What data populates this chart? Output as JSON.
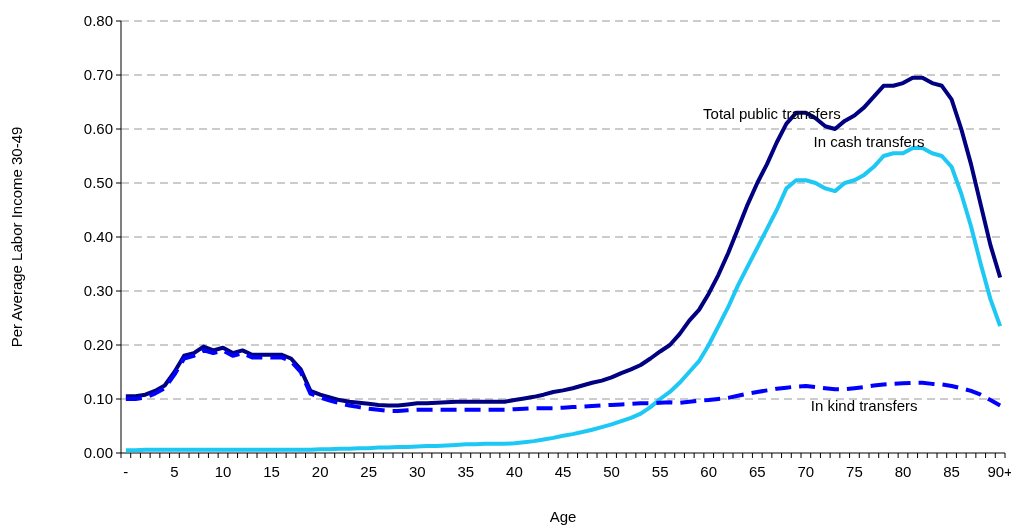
{
  "chart_data": {
    "type": "line",
    "xlabel": "Age",
    "ylabel": "Per Average Labor Income 30-49",
    "categories": [
      "-",
      null,
      null,
      null,
      null,
      "5",
      null,
      null,
      null,
      null,
      "10",
      null,
      null,
      null,
      null,
      "15",
      null,
      null,
      null,
      null,
      "20",
      null,
      null,
      null,
      null,
      "25",
      null,
      null,
      null,
      null,
      "30",
      null,
      null,
      null,
      null,
      "35",
      null,
      null,
      null,
      null,
      "40",
      null,
      null,
      null,
      null,
      "45",
      null,
      null,
      null,
      null,
      "50",
      null,
      null,
      null,
      null,
      "55",
      null,
      null,
      null,
      null,
      "60",
      null,
      null,
      null,
      null,
      "65",
      null,
      null,
      null,
      null,
      "70",
      null,
      null,
      null,
      null,
      "75",
      null,
      null,
      null,
      null,
      "80",
      null,
      null,
      null,
      null,
      "85",
      null,
      null,
      null,
      null,
      "90+"
    ],
    "ylim": [
      0,
      0.8
    ],
    "yticks": [
      {
        "value": 0,
        "label": "0.00"
      },
      {
        "value": 0.1,
        "label": "0.10"
      },
      {
        "value": 0.2,
        "label": "0.20"
      },
      {
        "value": 0.3,
        "label": "0.30"
      },
      {
        "value": 0.4,
        "label": "0.40"
      },
      {
        "value": 0.5,
        "label": "0.50"
      },
      {
        "value": 0.6,
        "label": "0.60"
      },
      {
        "value": 0.7,
        "label": "0.70"
      },
      {
        "value": 0.8,
        "label": "0.80"
      }
    ],
    "grid": "y",
    "marker": "none",
    "series": [
      {
        "name": "Total public transfers",
        "color": "#000080",
        "line_style": "solid",
        "values": [
          0.105,
          0.105,
          0.108,
          0.115,
          0.125,
          0.15,
          0.18,
          0.185,
          0.197,
          0.19,
          0.195,
          0.185,
          0.19,
          0.182,
          0.182,
          0.182,
          0.182,
          0.175,
          0.155,
          0.115,
          0.108,
          0.103,
          0.098,
          0.095,
          0.093,
          0.091,
          0.089,
          0.088,
          0.088,
          0.09,
          0.092,
          0.092,
          0.093,
          0.094,
          0.095,
          0.095,
          0.095,
          0.095,
          0.095,
          0.095,
          0.098,
          0.101,
          0.104,
          0.108,
          0.113,
          0.116,
          0.12,
          0.125,
          0.13,
          0.134,
          0.14,
          0.148,
          0.155,
          0.163,
          0.175,
          0.188,
          0.2,
          0.22,
          0.245,
          0.265,
          0.295,
          0.33,
          0.37,
          0.415,
          0.46,
          0.5,
          0.535,
          0.575,
          0.61,
          0.63,
          0.63,
          0.62,
          0.605,
          0.6,
          0.615,
          0.625,
          0.64,
          0.66,
          0.68,
          0.68,
          0.685,
          0.695,
          0.695,
          0.685,
          0.68,
          0.655,
          0.6,
          0.535,
          0.46,
          0.385,
          0.325
        ]
      },
      {
        "name": "In cash transfers",
        "color": "#1ec8f5",
        "line_style": "solid",
        "values": [
          0.005,
          0.005,
          0.006,
          0.006,
          0.006,
          0.006,
          0.006,
          0.006,
          0.006,
          0.006,
          0.006,
          0.006,
          0.006,
          0.006,
          0.006,
          0.006,
          0.006,
          0.006,
          0.006,
          0.006,
          0.007,
          0.007,
          0.008,
          0.008,
          0.009,
          0.009,
          0.01,
          0.01,
          0.011,
          0.011,
          0.012,
          0.013,
          0.013,
          0.014,
          0.015,
          0.016,
          0.016,
          0.017,
          0.017,
          0.017,
          0.018,
          0.02,
          0.022,
          0.025,
          0.028,
          0.032,
          0.035,
          0.039,
          0.043,
          0.048,
          0.053,
          0.059,
          0.065,
          0.073,
          0.085,
          0.1,
          0.113,
          0.13,
          0.15,
          0.17,
          0.2,
          0.235,
          0.27,
          0.31,
          0.345,
          0.38,
          0.415,
          0.45,
          0.49,
          0.505,
          0.505,
          0.5,
          0.49,
          0.485,
          0.5,
          0.505,
          0.515,
          0.53,
          0.55,
          0.555,
          0.555,
          0.565,
          0.565,
          0.555,
          0.55,
          0.53,
          0.48,
          0.42,
          0.35,
          0.285,
          0.235
        ]
      },
      {
        "name": "In kind transfers",
        "color": "#0000ff",
        "line_style": "dashed",
        "values": [
          0.1,
          0.1,
          0.103,
          0.11,
          0.12,
          0.145,
          0.175,
          0.18,
          0.19,
          0.185,
          0.19,
          0.18,
          0.185,
          0.177,
          0.177,
          0.177,
          0.177,
          0.17,
          0.15,
          0.11,
          0.103,
          0.097,
          0.092,
          0.088,
          0.085,
          0.082,
          0.08,
          0.078,
          0.078,
          0.079,
          0.08,
          0.08,
          0.08,
          0.08,
          0.08,
          0.08,
          0.08,
          0.08,
          0.08,
          0.08,
          0.081,
          0.082,
          0.083,
          0.083,
          0.083,
          0.084,
          0.085,
          0.086,
          0.087,
          0.088,
          0.089,
          0.09,
          0.091,
          0.092,
          0.092,
          0.093,
          0.094,
          0.093,
          0.095,
          0.097,
          0.098,
          0.1,
          0.102,
          0.106,
          0.11,
          0.113,
          0.116,
          0.119,
          0.121,
          0.123,
          0.124,
          0.122,
          0.12,
          0.118,
          0.118,
          0.12,
          0.122,
          0.125,
          0.127,
          0.128,
          0.129,
          0.13,
          0.13,
          0.128,
          0.127,
          0.124,
          0.12,
          0.115,
          0.108,
          0.098,
          0.088
        ]
      }
    ]
  }
}
